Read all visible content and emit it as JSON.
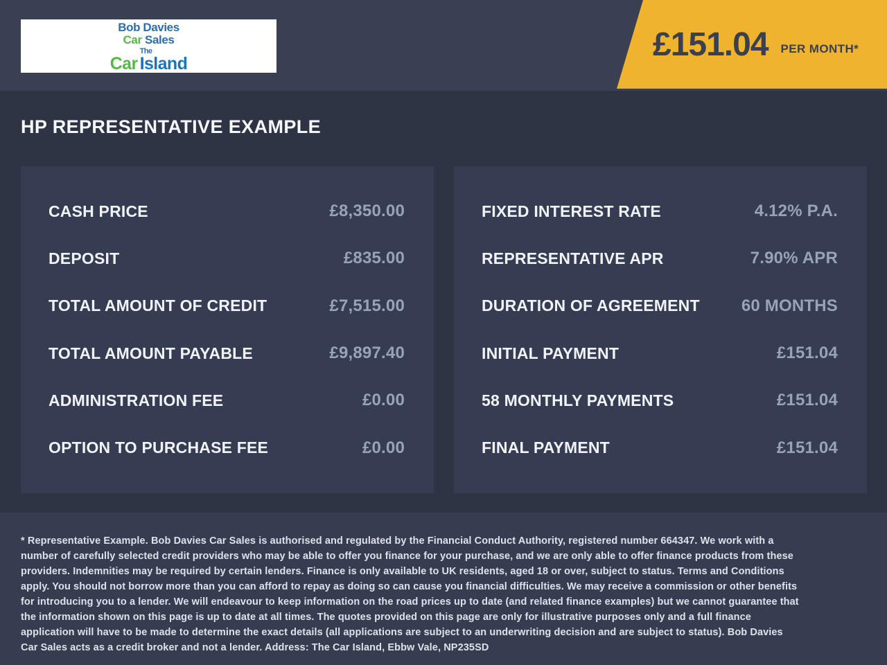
{
  "brand": {
    "logo": {
      "bob_davies": "Bob Davies",
      "car_1": "Car",
      "sales": " Sales",
      "the": "The",
      "car_2": "Car",
      "island": "Island"
    },
    "colors": {
      "logo_blue": "#2d6ea8",
      "logo_green": "#56b947"
    }
  },
  "banner": {
    "amount": "£151.04",
    "period": "PER MONTH*",
    "background": "#f0b32e",
    "text_color": "#3a4050"
  },
  "page": {
    "title": "HP REPRESENTATIVE EXAMPLE",
    "background": "#2e3444",
    "panel_background": "#363d52",
    "band_background": "#3a4053"
  },
  "left_panel": {
    "rows": [
      {
        "label": "CASH PRICE",
        "value": "£8,350.00"
      },
      {
        "label": "DEPOSIT",
        "value": "£835.00"
      },
      {
        "label": "TOTAL AMOUNT OF CREDIT",
        "value": "£7,515.00"
      },
      {
        "label": "TOTAL AMOUNT PAYABLE",
        "value": "£9,897.40"
      },
      {
        "label": "ADMINISTRATION FEE",
        "value": "£0.00"
      },
      {
        "label": "OPTION TO PURCHASE FEE",
        "value": "£0.00"
      }
    ]
  },
  "right_panel": {
    "rows": [
      {
        "label": "FIXED INTEREST RATE",
        "value": "4.12% P.A."
      },
      {
        "label": "REPRESENTATIVE APR",
        "value": "7.90% APR"
      },
      {
        "label": "DURATION OF AGREEMENT",
        "value": "60 MONTHS"
      },
      {
        "label": "INITIAL PAYMENT",
        "value": "£151.04"
      },
      {
        "label": "58 MONTHLY PAYMENTS",
        "value": "£151.04"
      },
      {
        "label": "FINAL PAYMENT",
        "value": "£151.04"
      }
    ]
  },
  "footer": {
    "disclaimer": "* Representative Example. Bob Davies Car Sales is authorised and regulated by the Financial Conduct Authority, registered number 664347. We work with a number of carefully selected credit providers who may be able to offer you finance for your purchase, and we are only able to offer finance products from these providers. Indemnities may be required by certain lenders. Finance is only available to UK residents, aged 18 or over, subject to status. Terms and Conditions apply. You should not borrow more than you can afford to repay as doing so can cause you financial difficulties. We may receive a commission or other benefits for introducing you to a lender. We will endeavour to keep information on the road prices up to date (and related finance examples) but we cannot guarantee that the information shown on this page is up to date at all times. The quotes provided on this page are only for illustrative purposes only and a full finance application will have to be made to determine the exact details (all applications are subject to an underwriting decision and are subject to status). Bob Davies Car Sales acts as a credit broker and not a lender. Address: The Car Island, Ebbw Vale, NP235SD"
  }
}
